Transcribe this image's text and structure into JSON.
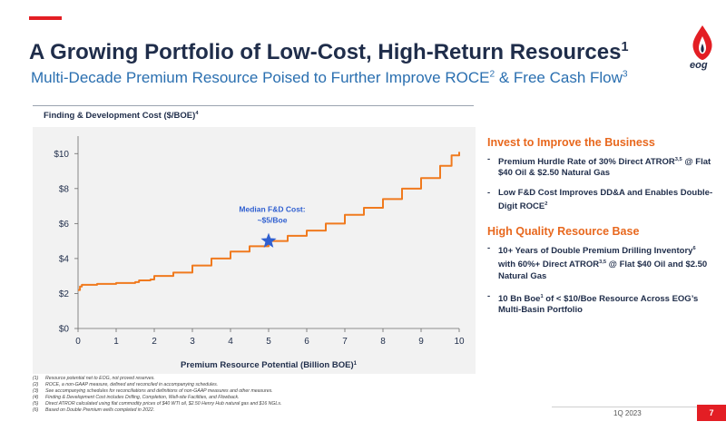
{
  "slide": {
    "title": "A Growing Portfolio of Low-Cost, High-Return Resources",
    "title_sup": "1",
    "subtitle_parts": [
      "Multi-Decade Premium Resource Poised to Further Improve ROCE",
      "2",
      " & Free Cash Flow",
      "3"
    ],
    "logo_text": "eog",
    "date": "1Q 2023",
    "page": "7",
    "brand_red": "#e31e24",
    "navy": "#1f2d4a",
    "orange": "#e8681e",
    "blue": "#2a6fb0"
  },
  "chart_label": {
    "text": "Finding & Development Cost ($/BOE)",
    "sup": "4"
  },
  "chart_data": {
    "type": "line",
    "xlabel": "Premium Resource Potential (Billion BOE)",
    "xlabel_sup": "1",
    "ylabel": "",
    "xlim": [
      0,
      10
    ],
    "ylim": [
      0,
      11
    ],
    "x_ticks": [
      "0",
      "1",
      "2",
      "3",
      "4",
      "5",
      "6",
      "7",
      "8",
      "9",
      "10"
    ],
    "y_ticks": [
      {
        "value": 0,
        "label": "$0"
      },
      {
        "value": 2,
        "label": "$2"
      },
      {
        "value": 4,
        "label": "$4"
      },
      {
        "value": 6,
        "label": "$6"
      },
      {
        "value": 8,
        "label": "$8"
      },
      {
        "value": 10,
        "label": "$10"
      }
    ],
    "grid": false,
    "series": [
      {
        "color": "#f07a1e",
        "x": [
          0,
          0.05,
          0.1,
          0.5,
          1.0,
          1.5,
          1.6,
          1.9,
          2.0,
          2.5,
          3.0,
          3.5,
          4.0,
          4.5,
          5.0,
          5.5,
          6.0,
          6.5,
          7.0,
          7.5,
          8.0,
          8.5,
          9.0,
          9.5,
          9.8,
          10.0
        ],
        "y": [
          2.2,
          2.4,
          2.5,
          2.55,
          2.6,
          2.65,
          2.75,
          2.8,
          3.0,
          3.2,
          3.6,
          4.0,
          4.4,
          4.7,
          5.0,
          5.3,
          5.6,
          6.0,
          6.5,
          6.9,
          7.4,
          8.0,
          8.6,
          9.3,
          9.9,
          10.1
        ]
      }
    ],
    "annotation": {
      "lines": [
        "Median F&D Cost:",
        "~$5/Boe"
      ],
      "x": 5.0,
      "y": 5.0,
      "marker": "star",
      "marker_color": "#2f5fd0",
      "text_color": "#2f5fd0"
    },
    "line_color": "#f07a1e"
  },
  "right": {
    "section1": {
      "title": "Invest to Improve the Business",
      "bullets": [
        {
          "text": "Premium Hurdle Rate of 30% Direct ATROR",
          "sup": "3,5",
          "tail": " @ Flat $40 Oil & $2.50 Natural Gas"
        },
        {
          "text": "Low F&D Cost Improves DD&A and Enables Double-Digit ROCE",
          "sup": "2",
          "tail": ""
        }
      ]
    },
    "section2": {
      "title": "High Quality Resource Base",
      "bullets": [
        {
          "text": "10+ Years of Double Premium Drilling Inventory",
          "sup": "6",
          "tail": " with 60%+ Direct ATROR",
          "sup2": "3,5",
          "tail2": " @ Flat $40 Oil and $2.50 Natural Gas"
        },
        {
          "text": "10 Bn Boe",
          "sup": "1",
          "tail": " of < $10/Boe Resource Across EOG’s Multi-Basin Portfolio"
        }
      ]
    }
  },
  "footnotes": [
    {
      "num": "(1)",
      "text": "Resource potential net to EOG, not proved reserves."
    },
    {
      "num": "(2)",
      "text": "ROCE, a non-GAAP measure, defined and reconciled in accompanying schedules."
    },
    {
      "num": "(3)",
      "text": "See accompanying schedules for reconciliations and definitions of non-GAAP measures and other measures."
    },
    {
      "num": "(4)",
      "text": "Finding & Development Cost includes Drilling, Completion, Well-site Facilities, and Flowback."
    },
    {
      "num": "(5)",
      "text": "Direct ATROR calculated using flat commodity prices of $40 WTI oil, $2.50 Henry Hub natural gas and $16 NGLs."
    },
    {
      "num": "(6)",
      "text": "Based on Double Premium wells completed in 2022."
    }
  ]
}
